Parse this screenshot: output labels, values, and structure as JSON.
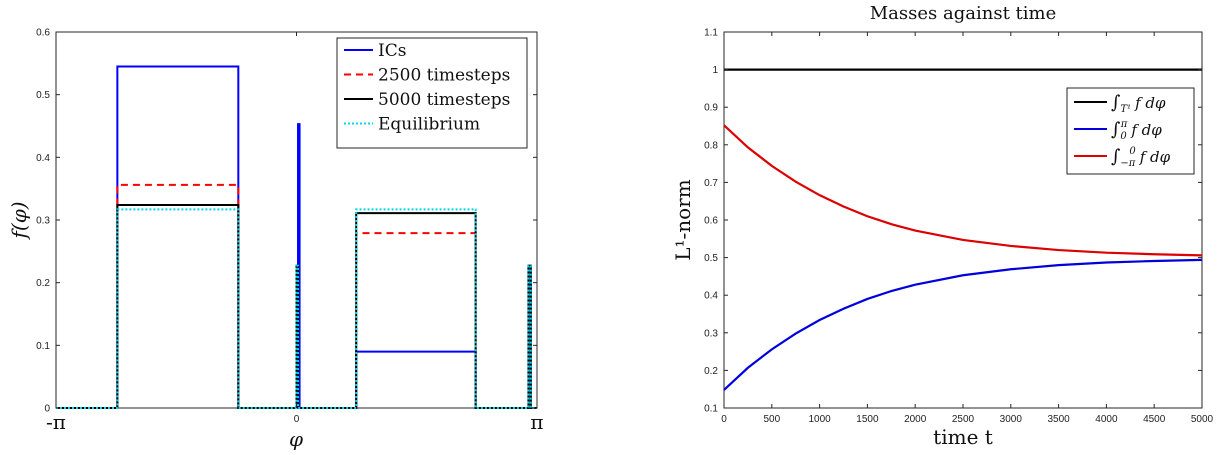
{
  "chart_data": [
    {
      "type": "line",
      "title": "",
      "xlabel": "φ",
      "ylabel": "f(φ)",
      "xlim": [
        -3.14159,
        3.14159
      ],
      "ylim": [
        0,
        0.6
      ],
      "yticks": [
        0,
        0.1,
        0.2,
        0.3,
        0.4,
        0.5,
        0.6
      ],
      "ytick_labels": [
        "0",
        "0.1",
        "0.2",
        "0.3",
        "0.4",
        "0.5",
        "0.6"
      ],
      "xtick_labels": [
        "-π",
        "0",
        "π"
      ],
      "xtick_values": [
        -3.14159,
        0,
        3.14159
      ],
      "grid": false,
      "legend_position": "top-right",
      "series": [
        {
          "name": "ICs",
          "color": "#0000ff",
          "style": "solid",
          "x": [
            -3.14159,
            -2.34,
            -2.34,
            -0.76,
            -0.76,
            -0.07,
            -0.07,
            0.02,
            0.02,
            0.04,
            0.04,
            0.78,
            0.78,
            2.34,
            2.34,
            3.03,
            3.03,
            3.06,
            3.06,
            3.14159
          ],
          "y": [
            0,
            0,
            0.545,
            0.545,
            0,
            0,
            0,
            0,
            0.453,
            0.453,
            0,
            0,
            0.09,
            0.09,
            0,
            0,
            0.227,
            0.227,
            0,
            0
          ]
        },
        {
          "name": "2500 timesteps",
          "color": "#ff0000",
          "style": "dashed",
          "x": [
            -3.14159,
            -2.34,
            -2.34,
            -0.76,
            -0.76,
            0.0,
            0.0,
            0.02,
            0.02,
            0.78,
            0.78,
            2.34,
            2.34,
            3.03,
            3.03,
            3.06,
            3.06,
            3.14159
          ],
          "y": [
            0,
            0,
            0.356,
            0.356,
            0,
            0,
            0.227,
            0.227,
            0,
            0,
            0.279,
            0.279,
            0,
            0,
            0.227,
            0.227,
            0,
            0
          ]
        },
        {
          "name": "5000 timesteps",
          "color": "#000000",
          "style": "solid",
          "x": [
            -3.14159,
            -2.34,
            -2.34,
            -0.76,
            -0.76,
            0.0,
            0.0,
            0.02,
            0.02,
            0.78,
            0.78,
            2.34,
            2.34,
            3.03,
            3.03,
            3.06,
            3.06,
            3.14159
          ],
          "y": [
            0,
            0,
            0.324,
            0.324,
            0,
            0,
            0.227,
            0.227,
            0,
            0,
            0.311,
            0.311,
            0,
            0,
            0.227,
            0.227,
            0,
            0
          ]
        },
        {
          "name": "Equilibrium",
          "color": "#00d8e8",
          "style": "dotted",
          "x": [
            -3.14159,
            -2.34,
            -2.34,
            -0.76,
            -0.76,
            0.0,
            0.0,
            0.02,
            0.02,
            0.78,
            0.78,
            2.34,
            2.34,
            3.03,
            3.03,
            3.06,
            3.06,
            3.14159
          ],
          "y": [
            0,
            0,
            0.317,
            0.317,
            0,
            0,
            0.227,
            0.227,
            0,
            0,
            0.317,
            0.317,
            0,
            0,
            0.227,
            0.227,
            0,
            0
          ]
        }
      ]
    },
    {
      "type": "line",
      "title": "Masses against time",
      "xlabel": "time t",
      "ylabel": "L¹-norm",
      "xlim": [
        0,
        5000
      ],
      "ylim": [
        0.1,
        1.1
      ],
      "xticks": [
        0,
        500,
        1000,
        1500,
        2000,
        2500,
        3000,
        3500,
        4000,
        4500,
        5000
      ],
      "xtick_labels": [
        "0",
        "500",
        "1000",
        "1500",
        "2000",
        "2500",
        "3000",
        "3500",
        "4000",
        "4500",
        "5000"
      ],
      "yticks": [
        0.1,
        0.2,
        0.3,
        0.4,
        0.5,
        0.6,
        0.7,
        0.8,
        0.9,
        1,
        1.1
      ],
      "ytick_labels": [
        "0.1",
        "0.2",
        "0.3",
        "0.4",
        "0.5",
        "0.6",
        "0.7",
        "0.8",
        "0.9",
        "1",
        "1.1"
      ],
      "grid": false,
      "legend_position": "top-right",
      "series": [
        {
          "name": "∫_{T¹} f dφ",
          "legend_main": "∫",
          "legend_sub": "T¹",
          "legend_sup": "",
          "legend_rest": "f dφ",
          "color": "#000000",
          "style": "solid",
          "x": [
            0,
            500,
            1000,
            1500,
            2000,
            2500,
            3000,
            3500,
            4000,
            4500,
            5000
          ],
          "y": [
            1,
            1,
            1,
            1,
            1,
            1,
            1,
            1,
            1,
            1,
            1
          ]
        },
        {
          "name": "∫_0^π f dφ",
          "legend_main": "∫",
          "legend_sub": "0",
          "legend_sup": "π",
          "legend_rest": "f dφ",
          "color": "#0000dd",
          "style": "solid",
          "x": [
            0,
            250,
            500,
            750,
            1000,
            1250,
            1500,
            1750,
            2000,
            2500,
            3000,
            3500,
            4000,
            4500,
            5000
          ],
          "y": [
            0.148,
            0.207,
            0.256,
            0.298,
            0.334,
            0.364,
            0.39,
            0.411,
            0.428,
            0.453,
            0.469,
            0.48,
            0.487,
            0.491,
            0.494
          ]
        },
        {
          "name": "∫_{-π}^0 f dφ",
          "legend_main": "∫",
          "legend_sub": "−π",
          "legend_sup": "0",
          "legend_rest": "f dφ",
          "color": "#dd0000",
          "style": "solid",
          "x": [
            0,
            250,
            500,
            750,
            1000,
            1250,
            1500,
            1750,
            2000,
            2500,
            3000,
            3500,
            4000,
            4500,
            5000
          ],
          "y": [
            0.852,
            0.793,
            0.744,
            0.702,
            0.666,
            0.636,
            0.61,
            0.589,
            0.572,
            0.547,
            0.531,
            0.52,
            0.513,
            0.509,
            0.506
          ]
        }
      ]
    }
  ]
}
